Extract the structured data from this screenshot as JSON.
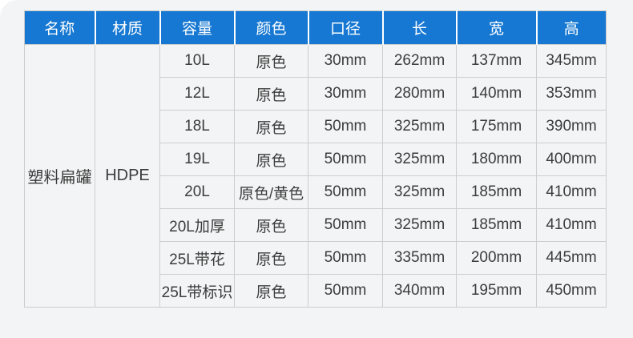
{
  "colors": {
    "header_bg": "#1678d2",
    "header_text": "#ffffff",
    "body_text": "#3c3c3c",
    "outer_border": "#c9c9c9",
    "cell_border": "#cdcdcd",
    "page_bg": "#f3f4f5",
    "corner_bg": "#ffffff"
  },
  "table": {
    "columns": [
      "名称",
      "材质",
      "容量",
      "颜色",
      "口径",
      "长",
      "宽",
      "高"
    ],
    "product": {
      "name": "塑料扁罐",
      "material": "HDPE"
    },
    "rows": [
      {
        "capacity": "10L",
        "color": "原色",
        "diameter": "30mm",
        "length": "262mm",
        "width": "137mm",
        "height": "345mm"
      },
      {
        "capacity": "12L",
        "color": "原色",
        "diameter": "30mm",
        "length": "280mm",
        "width": "140mm",
        "height": "353mm"
      },
      {
        "capacity": "18L",
        "color": "原色",
        "diameter": "50mm",
        "length": "325mm",
        "width": "175mm",
        "height": "390mm"
      },
      {
        "capacity": "19L",
        "color": "原色",
        "diameter": "50mm",
        "length": "325mm",
        "width": "180mm",
        "height": "400mm"
      },
      {
        "capacity": "20L",
        "color": "原色/黄色",
        "diameter": "50mm",
        "length": "325mm",
        "width": "185mm",
        "height": "410mm"
      },
      {
        "capacity": "20L加厚",
        "color": "原色",
        "diameter": "50mm",
        "length": "325mm",
        "width": "185mm",
        "height": "410mm"
      },
      {
        "capacity": "25L带花",
        "color": "原色",
        "diameter": "50mm",
        "length": "335mm",
        "width": "200mm",
        "height": "445mm"
      },
      {
        "capacity": "25L带标识",
        "color": "原色",
        "diameter": "50mm",
        "length": "340mm",
        "width": "195mm",
        "height": "450mm"
      }
    ]
  }
}
